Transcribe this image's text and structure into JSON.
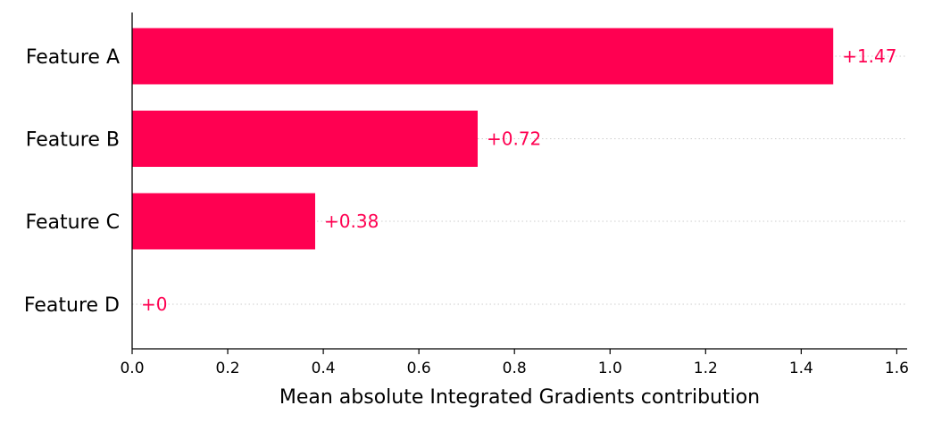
{
  "chart_data": {
    "type": "bar",
    "orientation": "horizontal",
    "categories": [
      "Feature A",
      "Feature B",
      "Feature C",
      "Feature D"
    ],
    "values": [
      1.467,
      0.723,
      0.383,
      0.0
    ],
    "value_labels": [
      "+1.47",
      "+0.72",
      "+0.38",
      "+0"
    ],
    "title": "",
    "xlabel": "Mean absolute Integrated Gradients contribution",
    "ylabel": "",
    "xlim": [
      0,
      1.62
    ],
    "xticks": [
      0.0,
      0.2,
      0.4,
      0.6,
      0.8,
      1.0,
      1.2,
      1.4,
      1.6
    ],
    "xtick_labels": [
      "0.0",
      "0.2",
      "0.4",
      "0.6",
      "0.8",
      "1.0",
      "1.2",
      "1.4",
      "1.6"
    ],
    "grid": false,
    "legend": "none",
    "colors": {
      "bar": "#ff0051",
      "value_label": "#ff0051",
      "guide_line": "#cccccc",
      "axis": "#000000"
    }
  }
}
